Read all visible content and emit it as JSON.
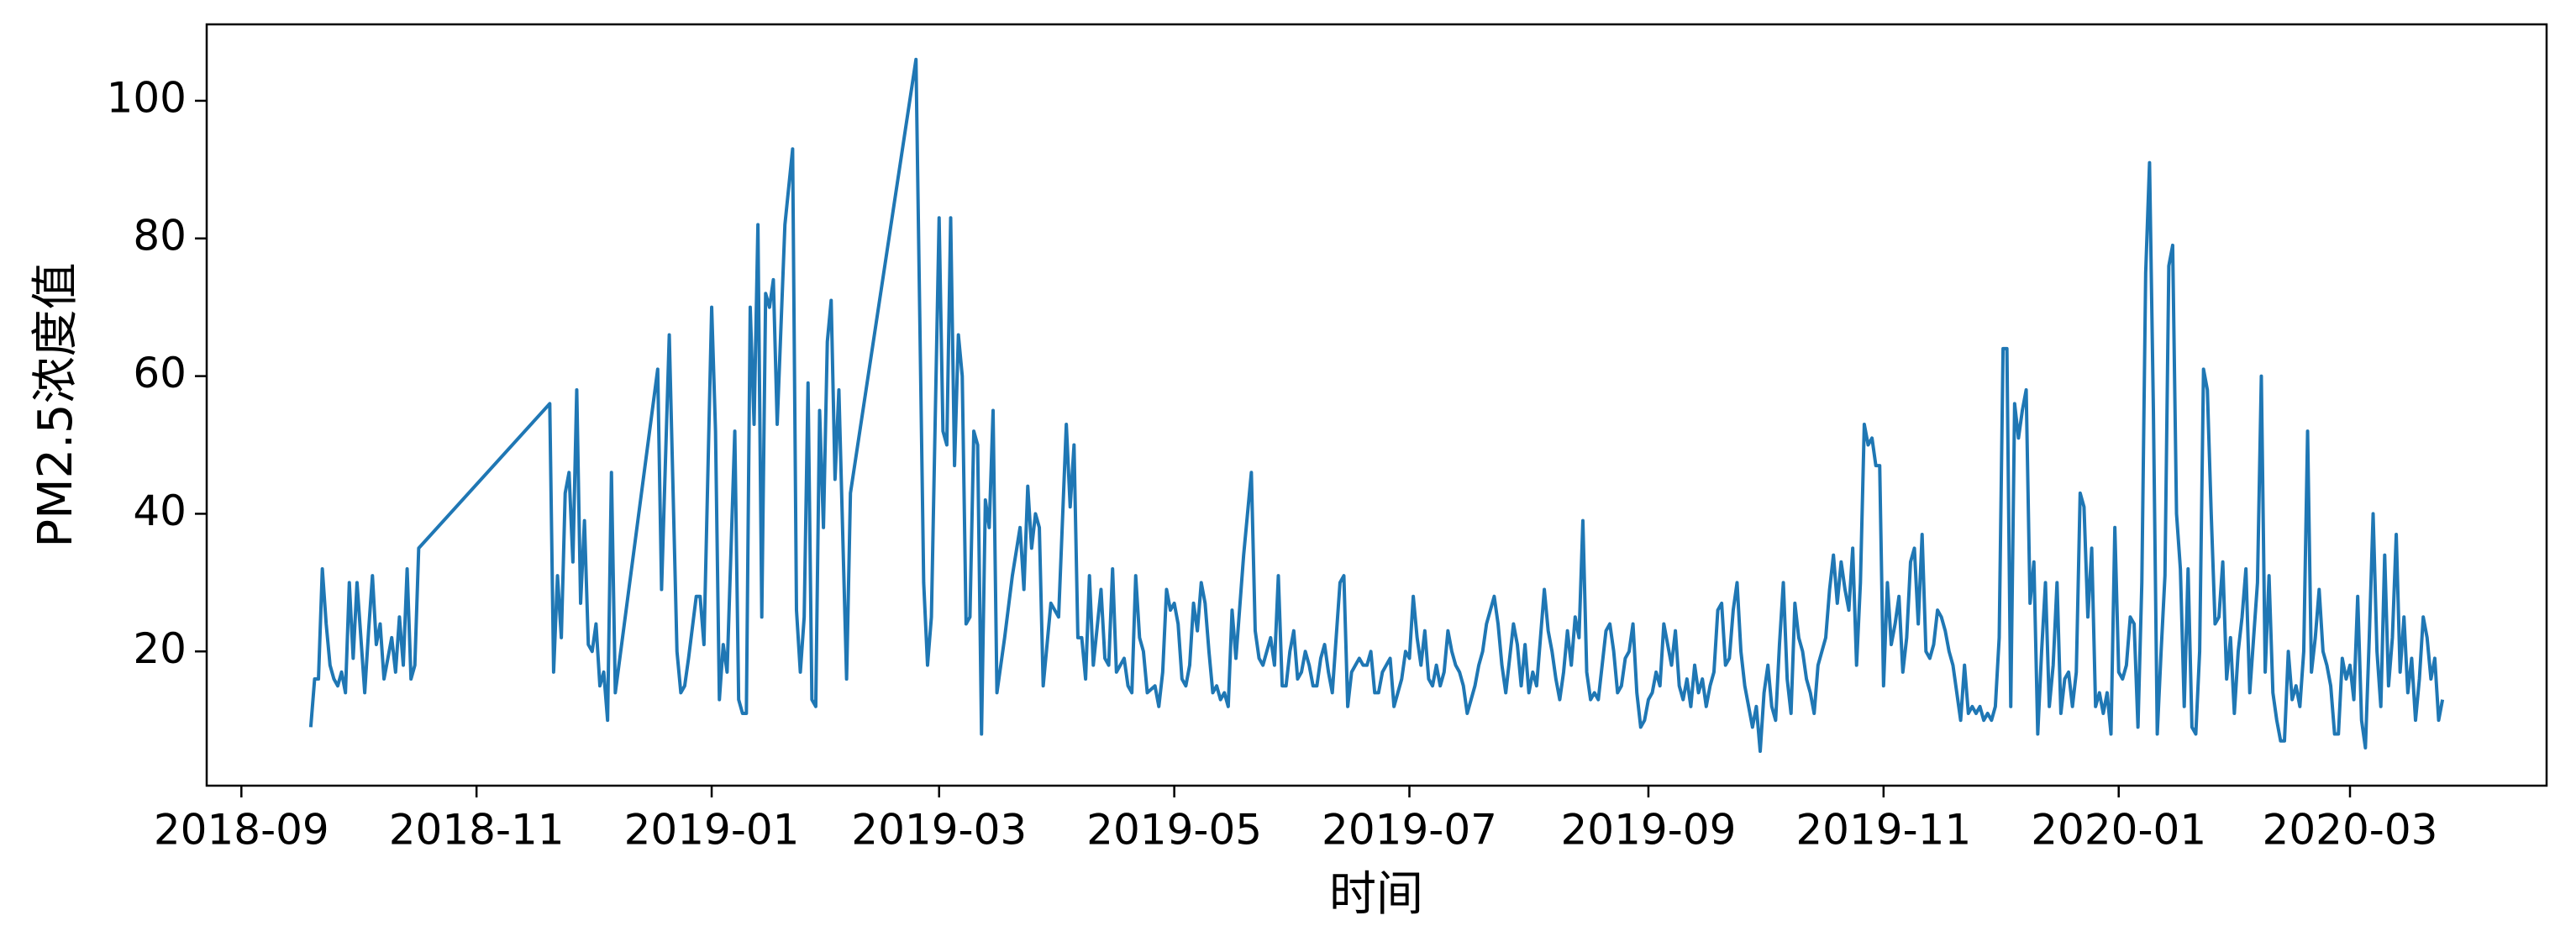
{
  "chart_data": {
    "type": "line",
    "xlabel": "时间",
    "ylabel": "PM2.5浓度值",
    "color": "#1f77b4",
    "xlim": [
      "2018-08-23",
      "2020-04-21"
    ],
    "xticks": [
      "2018-09",
      "2018-11",
      "2019-01",
      "2019-03",
      "2019-05",
      "2019-07",
      "2019-09",
      "2019-11",
      "2020-01",
      "2020-03"
    ],
    "ylim": [
      0.5,
      111.1
    ],
    "yticks": [
      20,
      40,
      60,
      80,
      100
    ],
    "grid": false,
    "x": [
      "2018-09-19",
      "2018-09-20",
      "2018-09-21",
      "2018-09-22",
      "2018-09-23",
      "2018-09-24",
      "2018-09-25",
      "2018-09-26",
      "2018-09-27",
      "2018-09-28",
      "2018-09-29",
      "2018-09-30",
      "2018-10-01",
      "2018-10-02",
      "2018-10-03",
      "2018-10-04",
      "2018-10-05",
      "2018-10-06",
      "2018-10-07",
      "2018-10-08",
      "2018-10-09",
      "2018-10-10",
      "2018-10-11",
      "2018-10-12",
      "2018-10-13",
      "2018-10-14",
      "2018-10-15",
      "2018-10-16",
      "2018-10-17",
      "2018-11-20",
      "2018-11-21",
      "2018-11-22",
      "2018-11-23",
      "2018-11-24",
      "2018-11-25",
      "2018-11-26",
      "2018-11-27",
      "2018-11-28",
      "2018-11-29",
      "2018-11-30",
      "2018-12-01",
      "2018-12-02",
      "2018-12-03",
      "2018-12-04",
      "2018-12-05",
      "2018-12-06",
      "2018-12-07",
      "2018-12-18",
      "2018-12-19",
      "2018-12-21",
      "2018-12-23",
      "2018-12-24",
      "2018-12-25",
      "2018-12-26",
      "2018-12-28",
      "2018-12-29",
      "2018-12-30",
      "2019-01-01",
      "2019-01-02",
      "2019-01-03",
      "2019-01-04",
      "2019-01-05",
      "2019-01-07",
      "2019-01-08",
      "2019-01-09",
      "2019-01-10",
      "2019-01-11",
      "2019-01-12",
      "2019-01-13",
      "2019-01-14",
      "2019-01-15",
      "2019-01-16",
      "2019-01-17",
      "2019-01-18",
      "2019-01-20",
      "2019-01-22",
      "2019-01-23",
      "2019-01-24",
      "2019-01-25",
      "2019-01-26",
      "2019-01-27",
      "2019-01-28",
      "2019-01-29",
      "2019-01-30",
      "2019-01-31",
      "2019-02-01",
      "2019-02-02",
      "2019-02-03",
      "2019-02-05",
      "2019-02-06",
      "2019-02-23",
      "2019-02-24",
      "2019-02-25",
      "2019-02-26",
      "2019-02-27",
      "2019-03-01",
      "2019-03-02",
      "2019-03-03",
      "2019-03-04",
      "2019-03-05",
      "2019-03-06",
      "2019-03-07",
      "2019-03-08",
      "2019-03-09",
      "2019-03-10",
      "2019-03-11",
      "2019-03-12",
      "2019-03-13",
      "2019-03-14",
      "2019-03-15",
      "2019-03-16",
      "2019-03-18",
      "2019-03-20",
      "2019-03-22",
      "2019-03-23",
      "2019-03-24",
      "2019-03-25",
      "2019-03-26",
      "2019-03-27",
      "2019-03-28",
      "2019-03-30",
      "2019-04-01",
      "2019-04-03",
      "2019-04-04",
      "2019-04-05",
      "2019-04-06",
      "2019-04-07",
      "2019-04-08",
      "2019-04-09",
      "2019-04-10",
      "2019-04-12",
      "2019-04-13",
      "2019-04-14",
      "2019-04-15",
      "2019-04-16",
      "2019-04-18",
      "2019-04-19",
      "2019-04-20",
      "2019-04-21",
      "2019-04-22",
      "2019-04-23",
      "2019-04-24",
      "2019-04-26",
      "2019-04-27",
      "2019-04-28",
      "2019-04-29",
      "2019-04-30",
      "2019-05-01",
      "2019-05-02",
      "2019-05-03",
      "2019-05-04",
      "2019-05-05",
      "2019-05-06",
      "2019-05-07",
      "2019-05-08",
      "2019-05-09",
      "2019-05-10",
      "2019-05-11",
      "2019-05-12",
      "2019-05-13",
      "2019-05-14",
      "2019-05-15",
      "2019-05-16",
      "2019-05-17",
      "2019-05-19",
      "2019-05-21",
      "2019-05-22",
      "2019-05-23",
      "2019-05-24",
      "2019-05-25",
      "2019-05-26",
      "2019-05-27",
      "2019-05-28",
      "2019-05-29",
      "2019-05-30",
      "2019-05-31",
      "2019-06-01",
      "2019-06-02",
      "2019-06-03",
      "2019-06-04",
      "2019-06-05",
      "2019-06-06",
      "2019-06-07",
      "2019-06-08",
      "2019-06-09",
      "2019-06-10",
      "2019-06-11",
      "2019-06-12",
      "2019-06-13",
      "2019-06-14",
      "2019-06-15",
      "2019-06-16",
      "2019-06-17",
      "2019-06-18",
      "2019-06-19",
      "2019-06-20",
      "2019-06-21",
      "2019-06-22",
      "2019-06-23",
      "2019-06-24",
      "2019-06-25",
      "2019-06-26",
      "2019-06-27",
      "2019-06-28",
      "2019-06-29",
      "2019-06-30",
      "2019-07-01",
      "2019-07-02",
      "2019-07-03",
      "2019-07-04",
      "2019-07-05",
      "2019-07-06",
      "2019-07-07",
      "2019-07-08",
      "2019-07-09",
      "2019-07-10",
      "2019-07-11",
      "2019-07-12",
      "2019-07-13",
      "2019-07-14",
      "2019-07-15",
      "2019-07-16",
      "2019-07-17",
      "2019-07-18",
      "2019-07-19",
      "2019-07-20",
      "2019-07-21",
      "2019-07-22",
      "2019-07-23",
      "2019-07-24",
      "2019-07-25",
      "2019-07-26",
      "2019-07-27",
      "2019-07-28",
      "2019-07-29",
      "2019-07-30",
      "2019-07-31",
      "2019-08-01",
      "2019-08-02",
      "2019-08-03",
      "2019-08-04",
      "2019-08-05",
      "2019-08-06",
      "2019-08-07",
      "2019-08-08",
      "2019-08-09",
      "2019-08-10",
      "2019-08-11",
      "2019-08-12",
      "2019-08-13",
      "2019-08-14",
      "2019-08-15",
      "2019-08-16",
      "2019-08-17",
      "2019-08-18",
      "2019-08-19",
      "2019-08-20",
      "2019-08-21",
      "2019-08-22",
      "2019-08-23",
      "2019-08-24",
      "2019-08-25",
      "2019-08-26",
      "2019-08-27",
      "2019-08-28",
      "2019-08-29",
      "2019-08-30",
      "2019-08-31",
      "2019-09-01",
      "2019-09-02",
      "2019-09-03",
      "2019-09-04",
      "2019-09-05",
      "2019-09-06",
      "2019-09-07",
      "2019-09-08",
      "2019-09-09",
      "2019-09-10",
      "2019-09-11",
      "2019-09-12",
      "2019-09-13",
      "2019-09-14",
      "2019-09-15",
      "2019-09-16",
      "2019-09-17",
      "2019-09-18",
      "2019-09-19",
      "2019-09-20",
      "2019-09-21",
      "2019-09-22",
      "2019-09-23",
      "2019-09-24",
      "2019-09-25",
      "2019-09-26",
      "2019-09-27",
      "2019-09-28",
      "2019-09-29",
      "2019-09-30",
      "2019-10-01",
      "2019-10-02",
      "2019-10-03",
      "2019-10-04",
      "2019-10-05",
      "2019-10-06",
      "2019-10-07",
      "2019-10-08",
      "2019-10-09",
      "2019-10-10",
      "2019-10-11",
      "2019-10-12",
      "2019-10-13",
      "2019-10-14",
      "2019-10-15",
      "2019-10-16",
      "2019-10-17",
      "2019-10-18",
      "2019-10-19",
      "2019-10-20",
      "2019-10-21",
      "2019-10-22",
      "2019-10-23",
      "2019-10-24",
      "2019-10-25",
      "2019-10-26",
      "2019-10-27",
      "2019-10-28",
      "2019-10-29",
      "2019-10-30",
      "2019-10-31",
      "2019-11-01",
      "2019-11-02",
      "2019-11-03",
      "2019-11-04",
      "2019-11-05",
      "2019-11-06",
      "2019-11-07",
      "2019-11-08",
      "2019-11-09",
      "2019-11-10",
      "2019-11-11",
      "2019-11-12",
      "2019-11-13",
      "2019-11-14",
      "2019-11-15",
      "2019-11-16",
      "2019-11-17",
      "2019-11-18",
      "2019-11-19",
      "2019-11-20",
      "2019-11-21",
      "2019-11-22",
      "2019-11-23",
      "2019-11-24",
      "2019-11-25",
      "2019-11-26",
      "2019-11-27",
      "2019-11-28",
      "2019-11-29",
      "2019-11-30",
      "2019-12-01",
      "2019-12-02",
      "2019-12-03",
      "2019-12-04",
      "2019-12-05",
      "2019-12-06",
      "2019-12-07",
      "2019-12-08",
      "2019-12-09",
      "2019-12-10",
      "2019-12-11",
      "2019-12-12",
      "2019-12-13",
      "2019-12-14",
      "2019-12-15",
      "2019-12-16",
      "2019-12-17",
      "2019-12-18",
      "2019-12-19",
      "2019-12-20",
      "2019-12-21",
      "2019-12-22",
      "2019-12-23",
      "2019-12-24",
      "2019-12-25",
      "2019-12-26",
      "2019-12-27",
      "2019-12-28",
      "2019-12-29",
      "2019-12-30",
      "2019-12-31",
      "2020-01-01",
      "2020-01-02",
      "2020-01-03",
      "2020-01-04",
      "2020-01-05",
      "2020-01-06",
      "2020-01-07",
      "2020-01-08",
      "2020-01-09",
      "2020-01-10",
      "2020-01-11",
      "2020-01-12",
      "2020-01-13",
      "2020-01-14",
      "2020-01-15",
      "2020-01-16",
      "2020-01-17",
      "2020-01-18",
      "2020-01-19",
      "2020-01-20",
      "2020-01-21",
      "2020-01-22",
      "2020-01-23",
      "2020-01-24",
      "2020-01-25",
      "2020-01-26",
      "2020-01-27",
      "2020-01-28",
      "2020-01-29",
      "2020-01-30",
      "2020-01-31",
      "2020-02-01",
      "2020-02-02",
      "2020-02-03",
      "2020-02-04",
      "2020-02-05",
      "2020-02-06",
      "2020-02-07",
      "2020-02-08",
      "2020-02-09",
      "2020-02-10",
      "2020-02-11",
      "2020-02-12",
      "2020-02-13",
      "2020-02-14",
      "2020-02-15",
      "2020-02-16",
      "2020-02-17",
      "2020-02-18",
      "2020-02-19",
      "2020-02-20",
      "2020-02-21",
      "2020-02-22",
      "2020-02-23",
      "2020-02-24",
      "2020-02-25",
      "2020-02-26",
      "2020-02-27",
      "2020-02-28",
      "2020-02-29",
      "2020-03-01",
      "2020-03-02",
      "2020-03-03",
      "2020-03-04",
      "2020-03-05",
      "2020-03-06",
      "2020-03-07",
      "2020-03-08",
      "2020-03-09",
      "2020-03-10",
      "2020-03-11",
      "2020-03-12",
      "2020-03-13",
      "2020-03-14",
      "2020-03-15",
      "2020-03-16",
      "2020-03-17",
      "2020-03-18",
      "2020-03-19",
      "2020-03-20",
      "2020-03-21",
      "2020-03-22",
      "2020-03-23",
      "2020-03-24",
      "2020-03-25"
    ],
    "values": [
      9,
      16,
      16,
      32,
      24,
      18,
      16,
      15,
      17,
      14,
      30,
      19,
      30,
      22,
      14,
      23,
      31,
      21,
      24,
      16,
      19,
      22,
      17,
      25,
      18,
      32,
      16,
      18,
      35,
      56,
      17,
      31,
      22,
      43,
      46,
      33,
      58,
      27,
      39,
      21,
      20,
      24,
      15,
      17,
      10,
      46,
      14,
      61,
      29,
      66,
      20,
      14,
      15,
      19,
      28,
      28,
      21,
      70,
      52,
      13,
      21,
      17,
      52,
      13,
      11,
      11,
      70,
      53,
      82,
      25,
      72,
      70,
      74,
      53,
      82,
      93,
      26,
      17,
      25,
      59,
      13,
      12,
      55,
      38,
      65,
      71,
      45,
      58,
      16,
      43,
      106,
      68,
      30,
      18,
      25,
      83,
      52,
      50,
      83,
      47,
      66,
      60,
      24,
      25,
      52,
      50,
      8,
      42,
      38,
      55,
      14,
      22,
      31,
      38,
      29,
      44,
      35,
      40,
      38,
      15,
      27,
      25,
      53,
      41,
      50,
      22,
      22,
      16,
      31,
      18,
      29,
      19,
      18,
      32,
      17,
      19,
      15,
      14,
      31,
      22,
      20,
      14,
      15,
      12,
      17,
      29,
      26,
      27,
      24,
      16,
      15,
      18,
      27,
      23,
      30,
      27,
      20,
      14,
      15,
      13,
      14,
      12,
      26,
      19,
      34,
      46,
      23,
      19,
      18,
      20,
      22,
      18,
      31,
      15,
      15,
      20,
      23,
      16,
      17,
      20,
      18,
      15,
      15,
      19,
      21,
      17,
      14,
      22,
      30,
      31,
      12,
      17,
      18,
      19,
      18,
      18,
      20,
      14,
      14,
      17,
      18,
      19,
      12,
      14,
      16,
      20,
      19,
      28,
      22,
      18,
      23,
      16,
      15,
      18,
      15,
      17,
      23,
      20,
      18,
      17,
      15,
      11,
      13,
      15,
      18,
      20,
      24,
      26,
      28,
      24,
      18,
      14,
      19,
      24,
      21,
      15,
      21,
      14,
      17,
      15,
      22,
      29,
      23,
      20,
      16,
      13,
      17,
      23,
      18,
      25,
      22,
      39,
      17,
      13,
      14,
      13,
      18,
      23,
      24,
      20,
      14,
      15,
      19,
      20,
      24,
      14,
      9,
      10,
      13,
      14,
      17,
      15,
      24,
      21,
      18,
      23,
      15,
      13,
      16,
      12,
      18,
      14,
      16,
      12,
      15,
      17,
      26,
      27,
      18,
      19,
      26,
      30,
      20,
      15,
      12,
      9,
      12,
      5.5,
      14,
      18,
      12,
      10,
      21,
      30,
      16,
      11,
      27,
      22,
      20,
      16,
      14,
      11,
      18,
      20,
      22,
      29,
      34,
      27,
      33,
      29,
      26,
      35,
      18,
      30,
      53,
      50,
      51,
      47,
      47,
      15,
      30,
      21,
      24,
      28,
      17,
      22,
      33,
      35,
      24,
      37,
      20,
      19,
      21,
      26,
      25,
      23,
      20,
      18,
      14,
      10,
      18,
      11,
      12,
      11,
      12,
      10,
      11,
      10,
      12,
      22,
      64,
      64,
      12,
      56,
      51,
      55,
      58,
      27,
      33,
      8,
      20,
      30,
      12,
      18,
      30,
      11,
      16,
      17,
      12,
      17,
      43,
      41,
      25,
      35,
      12,
      14,
      11,
      14,
      8,
      38,
      17,
      16,
      18,
      25,
      24,
      9,
      30,
      75,
      91,
      55,
      8,
      20,
      31,
      76,
      79,
      40,
      32,
      12,
      32,
      9,
      8,
      20,
      61,
      58,
      40,
      24,
      25,
      33,
      16,
      22,
      11,
      20,
      25,
      32,
      14,
      22,
      30,
      60,
      17,
      31,
      14,
      10,
      7,
      7,
      20,
      13,
      15,
      12,
      20,
      52,
      17,
      22,
      29,
      20,
      18,
      15,
      8,
      8,
      19,
      16,
      18,
      13,
      28,
      10,
      6,
      22,
      40,
      20,
      12,
      34,
      15,
      22,
      37,
      17,
      25,
      14,
      19,
      10,
      16,
      25,
      22,
      16,
      19,
      10,
      13
    ]
  }
}
